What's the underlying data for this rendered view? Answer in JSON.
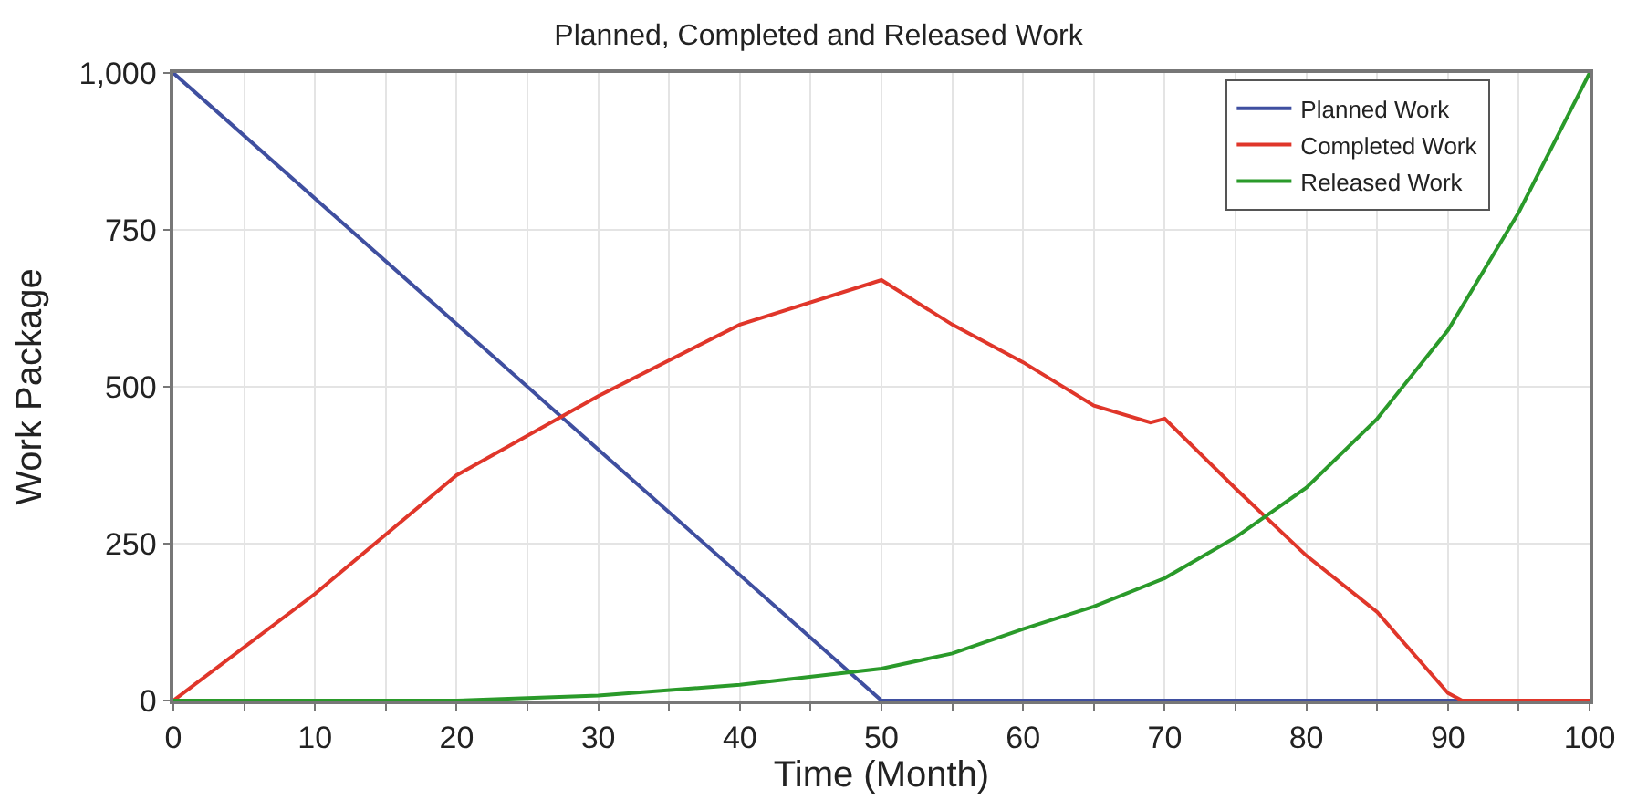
{
  "chart_data": {
    "type": "line",
    "title": "Planned, Completed and Released Work",
    "xlabel": "Time (Month)",
    "ylabel": "Work Package",
    "xlim": [
      0,
      100
    ],
    "ylim": [
      0,
      1000
    ],
    "xticks": [
      0,
      {
        "value": 5,
        "label": null
      },
      10,
      {
        "value": 15,
        "label": null
      },
      20,
      {
        "value": 25,
        "label": null
      },
      30,
      {
        "value": 35,
        "label": null
      },
      40,
      {
        "value": 45,
        "label": null
      },
      50,
      {
        "value": 55,
        "label": null
      },
      60,
      {
        "value": 65,
        "label": null
      },
      70,
      {
        "value": 75,
        "label": null
      },
      80,
      {
        "value": 85,
        "label": null
      },
      90,
      {
        "value": 95,
        "label": null
      },
      100
    ],
    "yticks": [
      0,
      250,
      500,
      750,
      {
        "value": 1000,
        "label": "1,000"
      }
    ],
    "grid": true,
    "legend": "top right",
    "marker": "none",
    "line_style": "solid",
    "series": [
      {
        "name": "Planned Work",
        "color": "#3f4fa0",
        "x": [
          0,
          50,
          100
        ],
        "values": [
          1000,
          0,
          0
        ]
      },
      {
        "name": "Completed Work",
        "color": "#e0362a",
        "x": [
          0,
          10,
          20,
          30,
          40,
          50,
          55,
          60,
          65,
          69,
          70,
          75,
          80,
          85,
          90,
          91,
          100
        ],
        "values": [
          0,
          170,
          359,
          485,
          599,
          670,
          599,
          539,
          470,
          443,
          449,
          338,
          231,
          141,
          12,
          0,
          0
        ]
      },
      {
        "name": "Released Work",
        "color": "#2a9a2a",
        "x": [
          0,
          20,
          30,
          40,
          50,
          55,
          60,
          65,
          70,
          75,
          80,
          85,
          90,
          95,
          100
        ],
        "values": [
          0,
          0,
          8,
          25,
          51,
          75,
          114,
          150,
          195,
          260,
          339,
          449,
          590,
          778,
          1000
        ]
      }
    ]
  }
}
